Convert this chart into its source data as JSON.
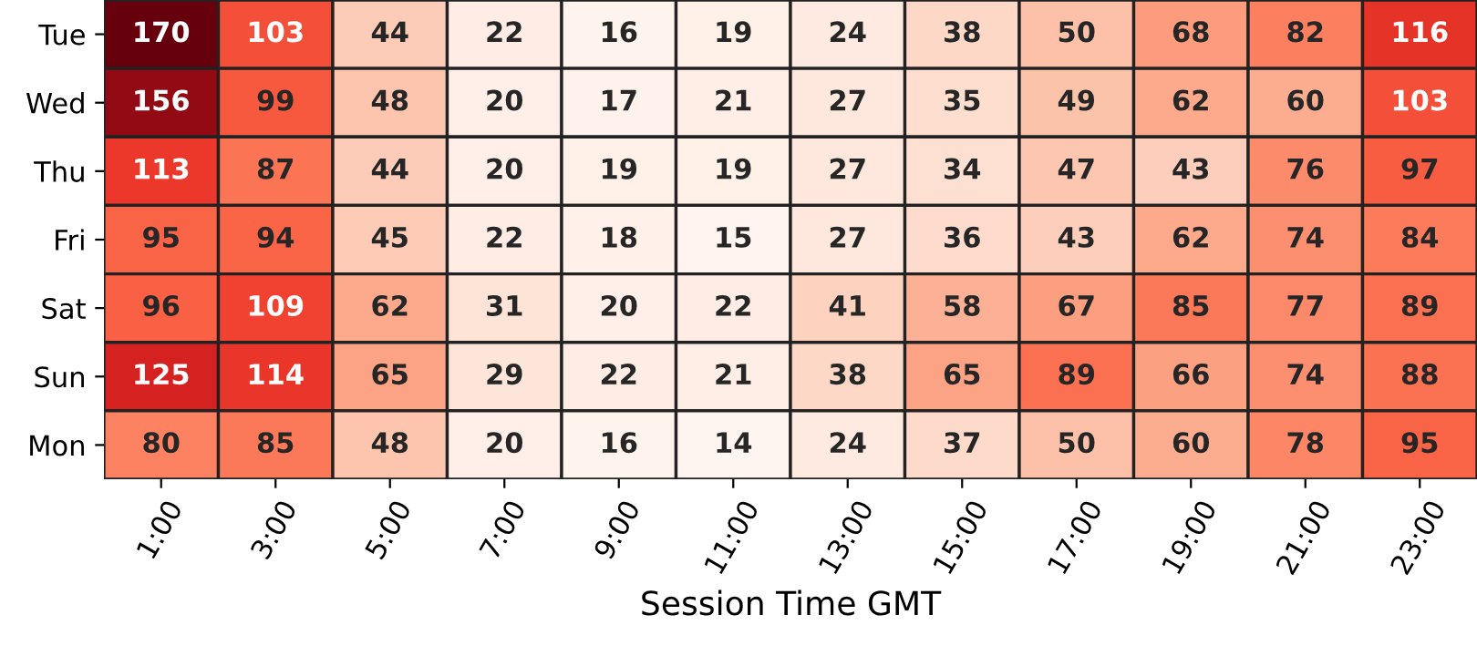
{
  "chart_data": {
    "type": "heatmap",
    "xlabel": "Session Time GMT",
    "data_labels": true,
    "categories": [
      "1:00",
      "3:00",
      "5:00",
      "7:00",
      "9:00",
      "11:00",
      "13:00",
      "15:00",
      "17:00",
      "19:00",
      "21:00",
      "23:00"
    ],
    "y_categories": [
      "Tue",
      "Wed",
      "Thu",
      "Fri",
      "Sat",
      "Sun",
      "Mon"
    ],
    "cells": [
      [
        170,
        103,
        44,
        22,
        16,
        19,
        24,
        38,
        50,
        68,
        82,
        116
      ],
      [
        156,
        99,
        48,
        20,
        17,
        21,
        27,
        35,
        49,
        62,
        60,
        103
      ],
      [
        113,
        87,
        44,
        20,
        19,
        19,
        27,
        34,
        47,
        43,
        76,
        97
      ],
      [
        95,
        94,
        45,
        22,
        18,
        15,
        27,
        36,
        43,
        62,
        74,
        84
      ],
      [
        96,
        109,
        62,
        31,
        20,
        22,
        41,
        58,
        67,
        85,
        77,
        89
      ],
      [
        125,
        114,
        65,
        29,
        22,
        21,
        38,
        65,
        89,
        66,
        74,
        88
      ],
      [
        80,
        85,
        48,
        20,
        16,
        14,
        24,
        37,
        50,
        60,
        78,
        95
      ]
    ]
  }
}
